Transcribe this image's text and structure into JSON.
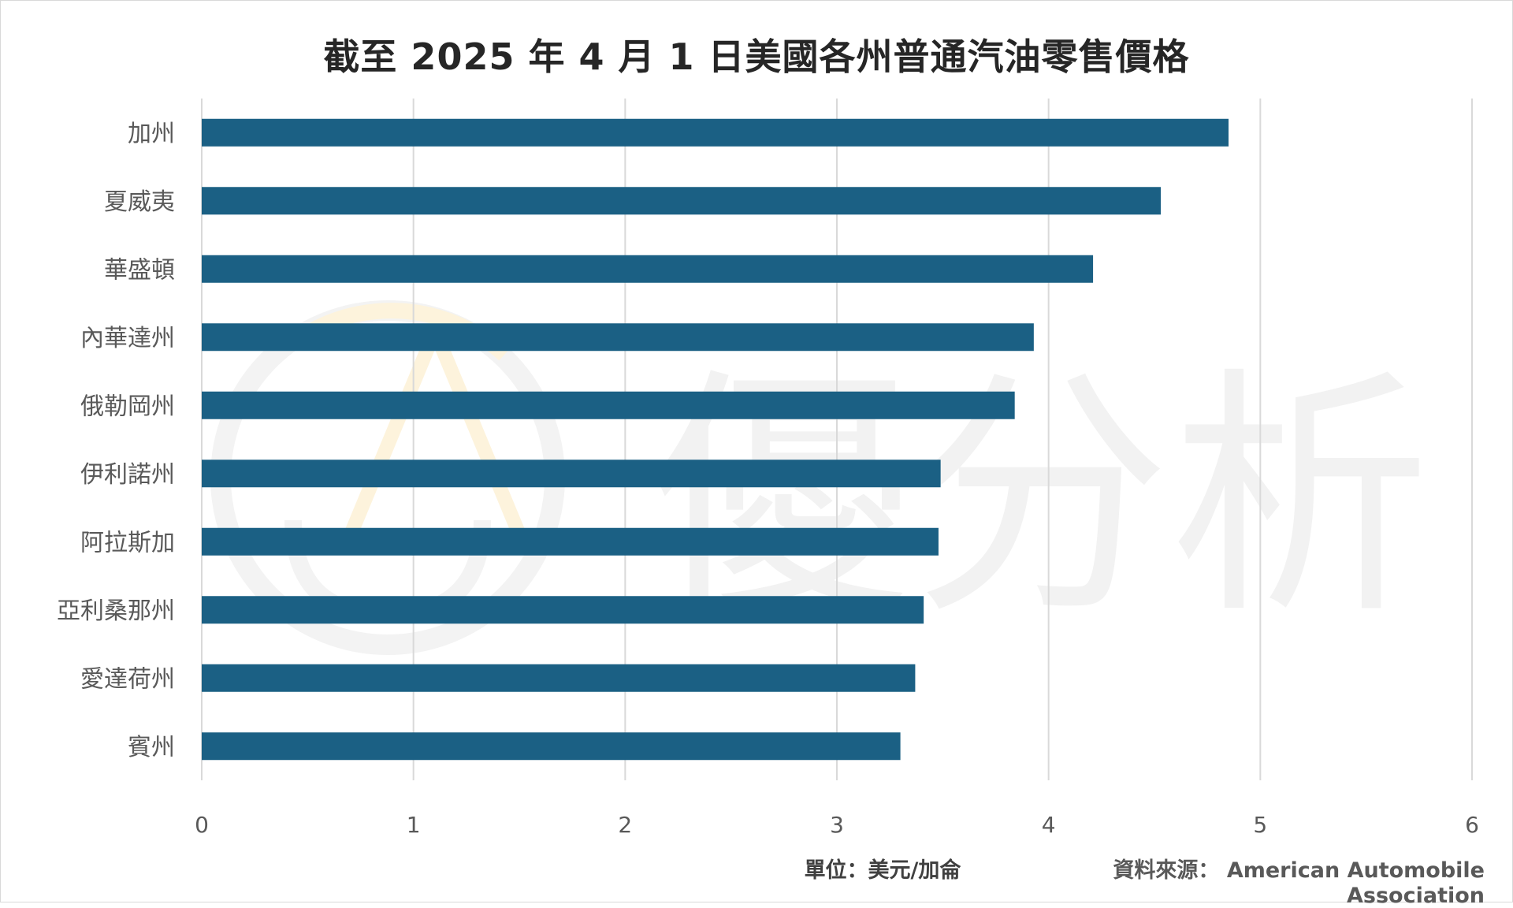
{
  "chart_data": {
    "type": "bar",
    "orientation": "horizontal",
    "title": "截至 2025 年 4 月 1 日美國各州普通汽油零售價格",
    "categories": [
      "加州",
      "夏威夷",
      "華盛頓",
      "內華達州",
      "俄勒岡州",
      "伊利諾州",
      "阿拉斯加",
      "亞利桑那州",
      "愛達荷州",
      "賓州"
    ],
    "values": [
      4.85,
      4.53,
      4.21,
      3.93,
      3.84,
      3.49,
      3.48,
      3.41,
      3.37,
      3.3
    ],
    "xlim": [
      0,
      6
    ],
    "x_ticks": [
      "0",
      "1",
      "2",
      "3",
      "4",
      "5",
      "6"
    ],
    "grid": true,
    "bar_color": "#1b6084",
    "unit_label": "單位：美元/加侖",
    "source_label": "資料來源： American Automobile Association"
  },
  "watermark_text": "優分析"
}
